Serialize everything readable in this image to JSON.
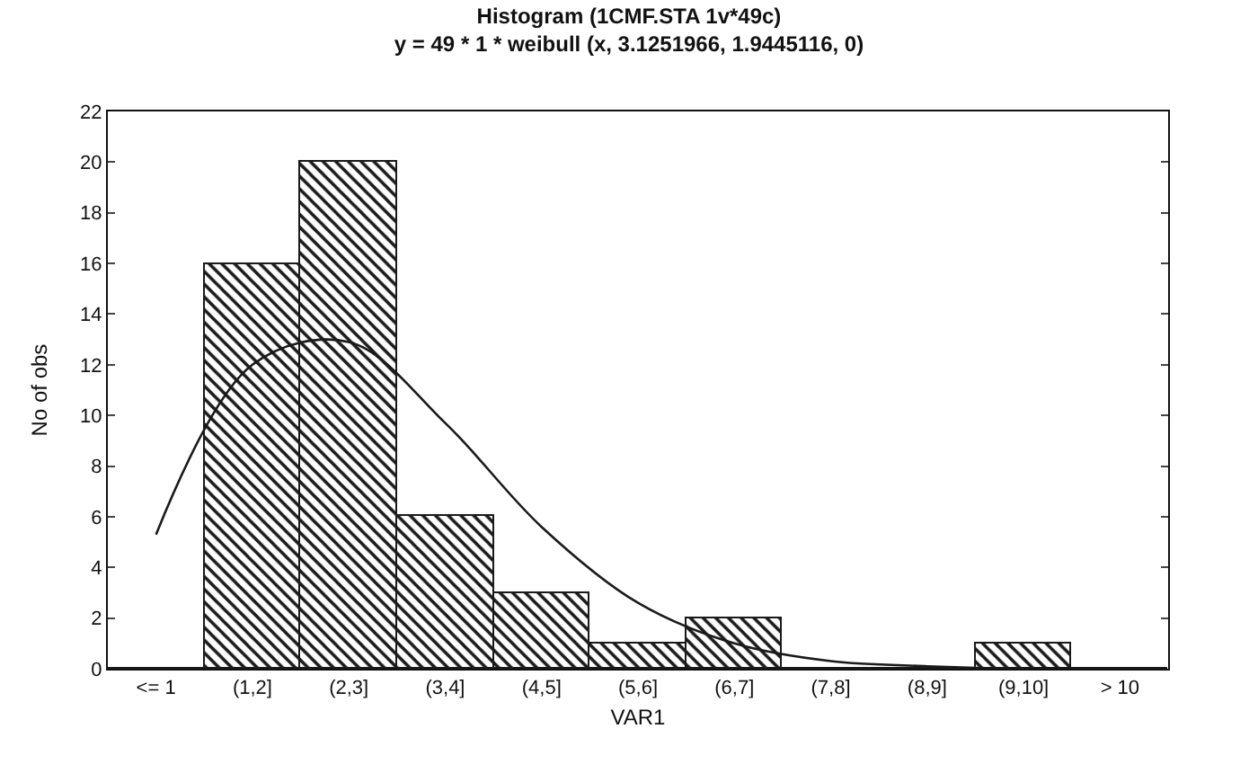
{
  "chart_data": {
    "type": "bar",
    "title": "Histogram (1CMF.STA 1v*49c)",
    "subtitle": "y = 49 * 1 * weibull (x, 3.1251966, 1.9445116, 0)",
    "xlabel": "VAR1",
    "ylabel": "No of obs",
    "categories": [
      "<= 1",
      "(1,2]",
      "(2,3]",
      "(3,4]",
      "(4,5]",
      "(5,6]",
      "(6,7]",
      "(7,8]",
      "(8,9]",
      "(9,10]",
      "> 10"
    ],
    "series": [
      {
        "color": "#1a1a1a",
        "values": [
          0,
          16,
          20,
          6,
          3,
          1,
          2,
          0,
          0,
          1,
          0
        ]
      },
      {
        "type": "line",
        "color": "#1a1a1a",
        "values": [
          5.3,
          12.0,
          12.9,
          9.7,
          5.6,
          2.6,
          1.0,
          0.3,
          0.1,
          0,
          0
        ]
      }
    ],
    "ylim": [
      0,
      22
    ],
    "yticks": [
      0,
      2,
      4,
      6,
      8,
      10,
      12,
      14,
      16,
      18,
      20,
      22
    ],
    "grid": false,
    "legend": false,
    "marker": "none",
    "line_style": "solid"
  }
}
